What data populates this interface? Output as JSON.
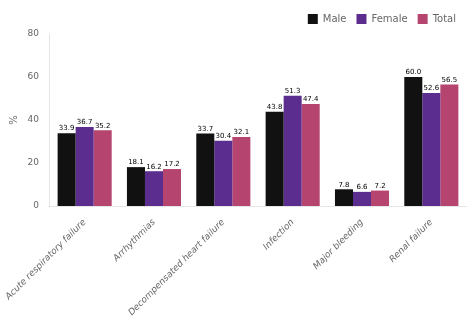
{
  "chart_data": {
    "type": "bar",
    "categories": [
      "Acute respiratory failure",
      "Arrhythmias",
      "Decompensated heart failure",
      "Infection",
      "Major bleeding",
      "Renal failure"
    ],
    "series": [
      {
        "name": "Male",
        "color": "#111111",
        "values": [
          33.9,
          18.1,
          33.7,
          43.8,
          7.8,
          60.0
        ],
        "value_labels": [
          "33.9",
          "18.1",
          "33.7",
          "43.8",
          "7.8",
          "60.0"
        ]
      },
      {
        "name": "Female",
        "color": "#5b2d8e",
        "values": [
          36.7,
          16.2,
          30.4,
          51.3,
          6.6,
          52.6
        ],
        "value_labels": [
          "36.7",
          "16.2",
          "30.4",
          "51.3",
          "6.6",
          "52.6"
        ]
      },
      {
        "name": "Total",
        "color": "#b5446e",
        "values": [
          35.2,
          17.2,
          32.1,
          47.4,
          7.2,
          56.5
        ],
        "value_labels": [
          "35.2",
          "17.2",
          "32.1",
          "47.4",
          "7.2",
          "56.5"
        ]
      }
    ],
    "y_label": "%",
    "ylim": [
      0,
      80
    ],
    "yticks": [
      0,
      20,
      40,
      60,
      80
    ],
    "grid": false,
    "legend": "upper right",
    "data_labels": true
  }
}
